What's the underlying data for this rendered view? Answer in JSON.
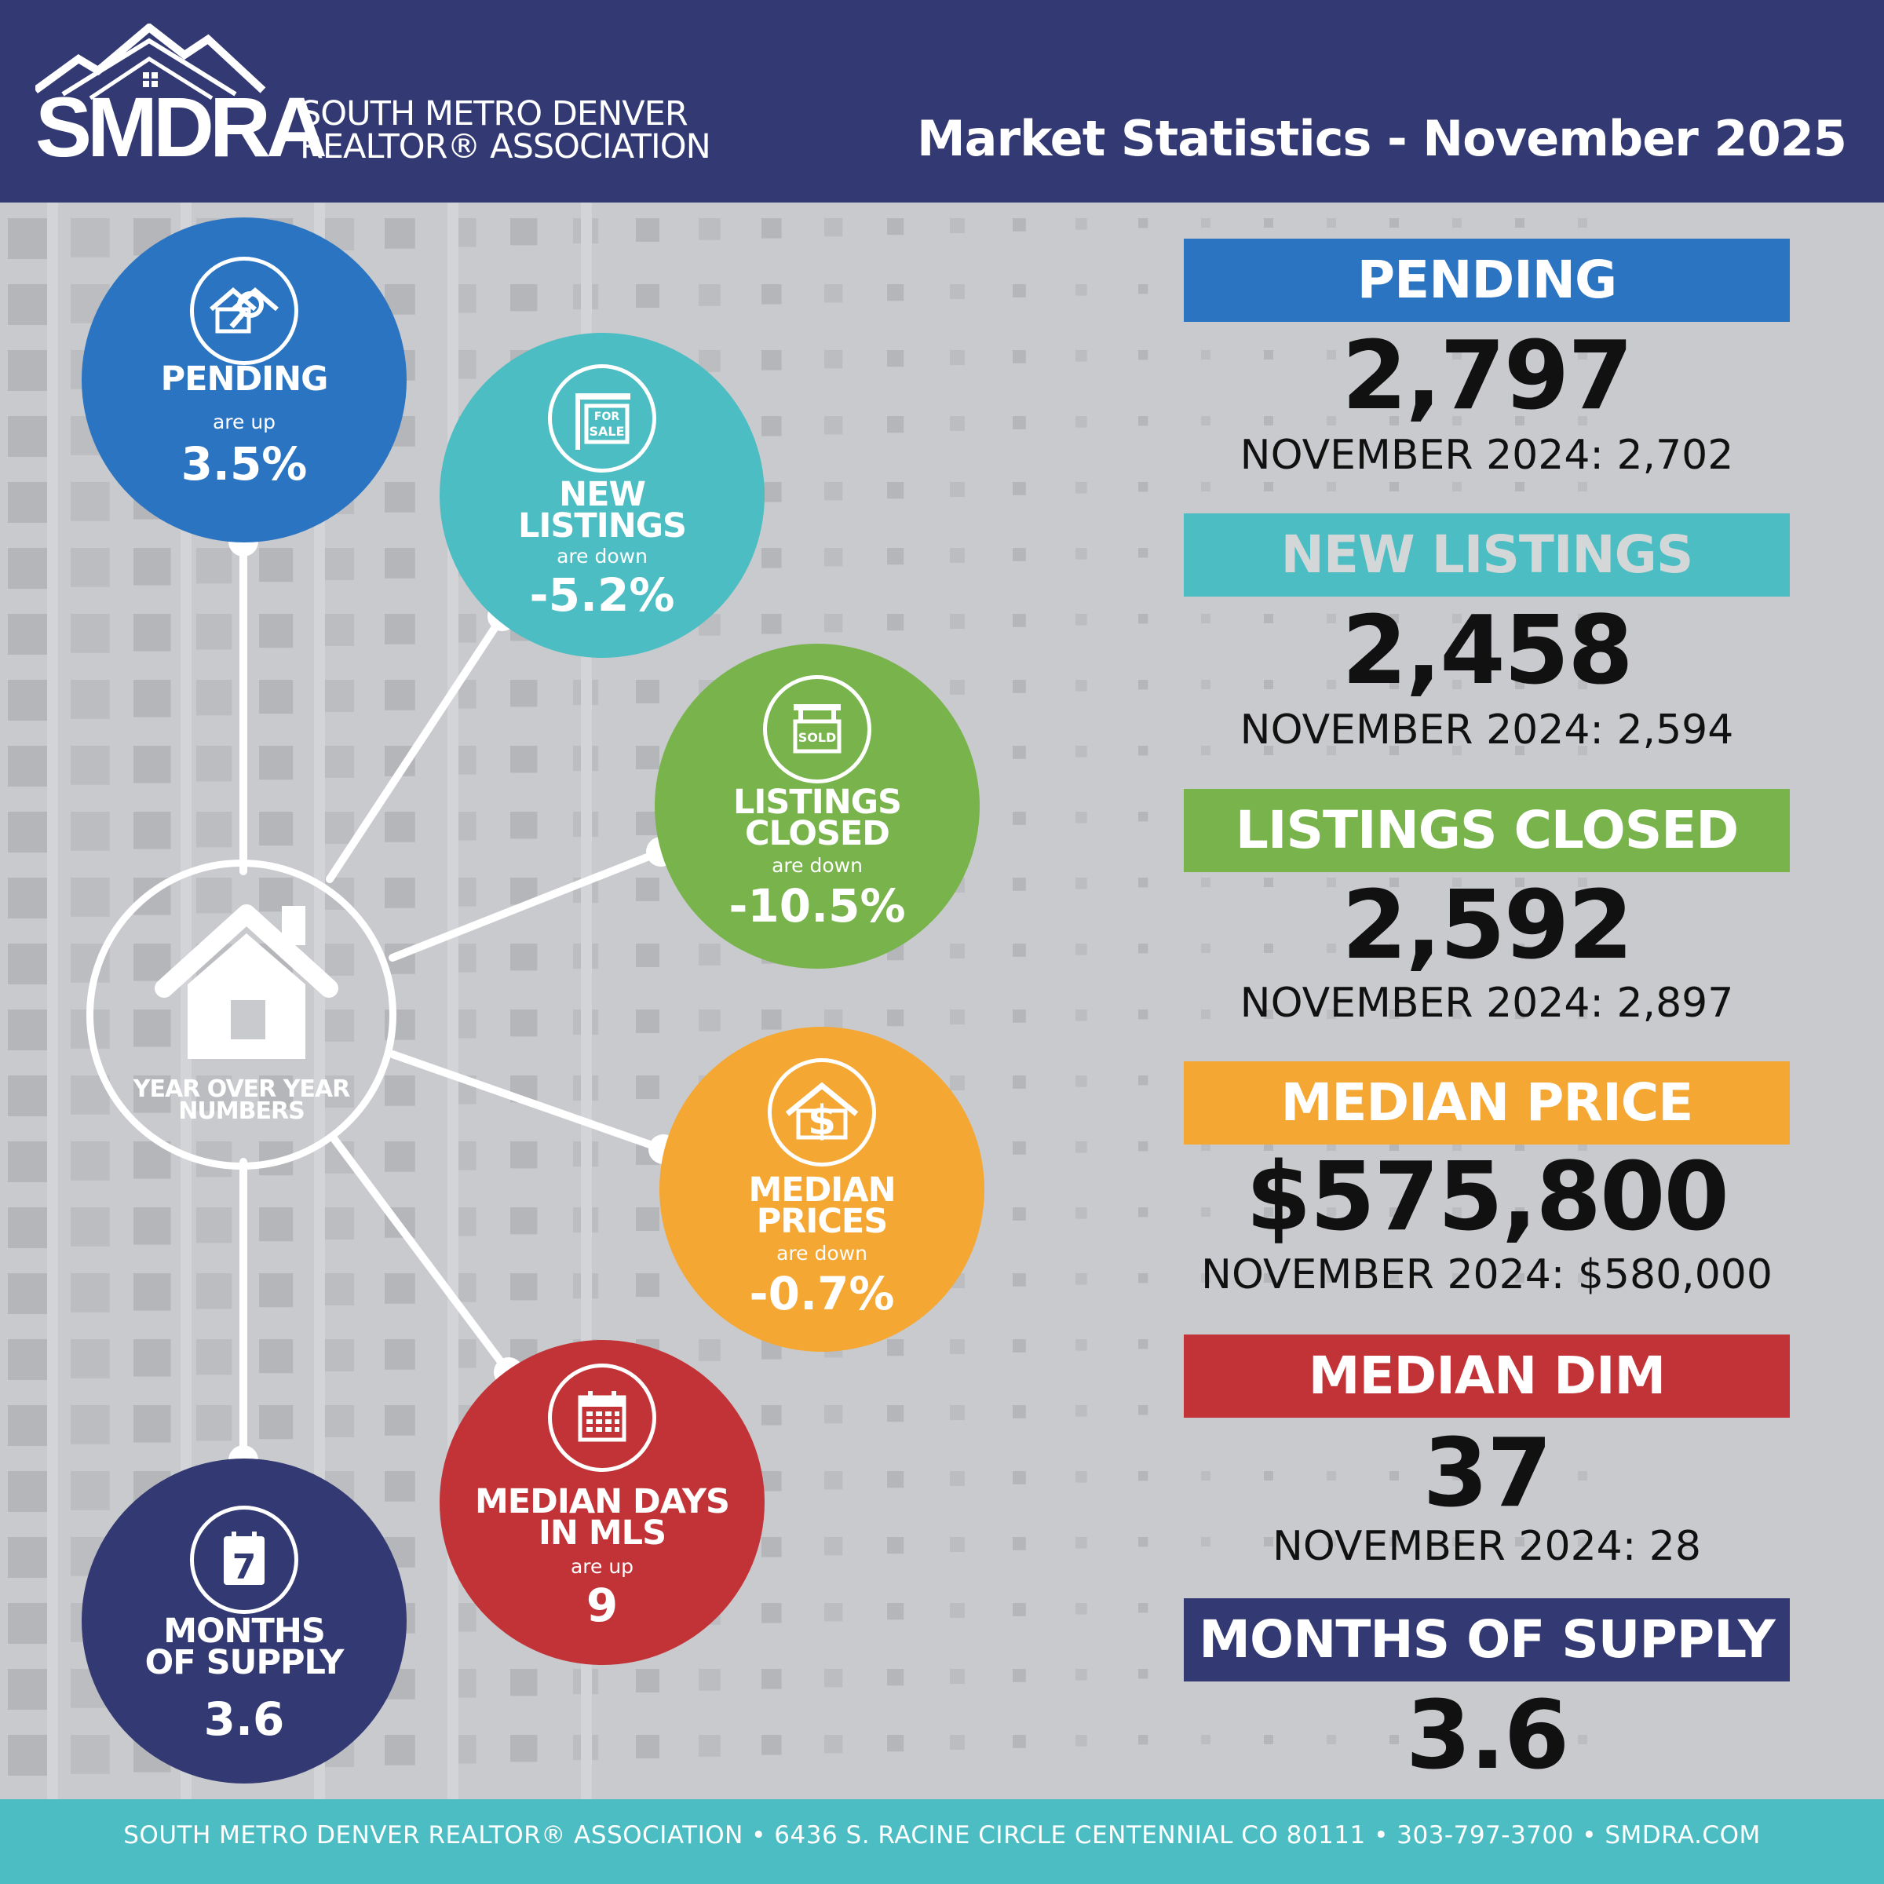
{
  "header": {
    "logo_acronym": "SMDRA",
    "logo_name_line1": "SOUTH METRO DENVER",
    "logo_name_line2": "REALTOR® ASSOCIATION",
    "title": "Market Statistics - November 2025"
  },
  "colors": {
    "navy": "#333a73",
    "blue": "#2a74c2",
    "teal": "#4cbdc3",
    "green": "#78b34b",
    "orange": "#f4a733",
    "red": "#c13337",
    "background": "#c9cacd"
  },
  "hub": {
    "label_line1": "YEAR OVER YEAR",
    "label_line2": "NUMBERS",
    "icon": "house-icon"
  },
  "circles": {
    "pending": {
      "title": "PENDING",
      "sub": "are up",
      "value": "3.5%",
      "icon": "house-search-icon"
    },
    "new_listings": {
      "title_line1": "NEW",
      "title_line2": "LISTINGS",
      "sub": "are down",
      "value": "-5.2%",
      "icon": "for-sale-sign-icon",
      "icon_text1": "FOR",
      "icon_text2": "SALE"
    },
    "closed": {
      "title_line1": "LISTINGS",
      "title_line2": "CLOSED",
      "sub": "are down",
      "value": "-10.5%",
      "icon": "sold-sign-icon",
      "icon_text": "SOLD"
    },
    "median_price": {
      "title_line1": "MEDIAN",
      "title_line2": "PRICES",
      "sub": "are down",
      "value": "-0.7%",
      "icon": "house-dollar-icon"
    },
    "median_days": {
      "title_line1": "MEDIAN DAYS",
      "title_line2": "IN MLS",
      "sub": "are up",
      "value": "9",
      "icon": "calendar-icon"
    },
    "supply": {
      "title_line1": "MONTHS",
      "title_line2": "OF SUPPLY",
      "value": "3.6",
      "icon": "calendar-seven-icon",
      "icon_text": "7"
    }
  },
  "panels": {
    "pending": {
      "label": "PENDING",
      "value": "2,797",
      "prev": "NOVEMBER 2024: 2,702"
    },
    "new_listings": {
      "label": "NEW LISTINGS",
      "value": "2,458",
      "prev": "NOVEMBER 2024: 2,594"
    },
    "closed": {
      "label": "LISTINGS CLOSED",
      "value": "2,592",
      "prev": "NOVEMBER 2024: 2,897"
    },
    "median_price": {
      "label": "MEDIAN PRICE",
      "value": "$575,800",
      "prev": "NOVEMBER 2024: $580,000"
    },
    "median_dim": {
      "label": "MEDIAN DIM",
      "value": "37",
      "prev": "NOVEMBER 2024: 28"
    },
    "supply": {
      "label": "MONTHS OF SUPPLY",
      "value": "3.6"
    }
  },
  "footer": {
    "text": "SOUTH METRO DENVER REALTOR® ASSOCIATION • 6436 S. RACINE CIRCLE CENTENNIAL CO 80111 •  303-797-3700 • SMDRA.COM"
  }
}
